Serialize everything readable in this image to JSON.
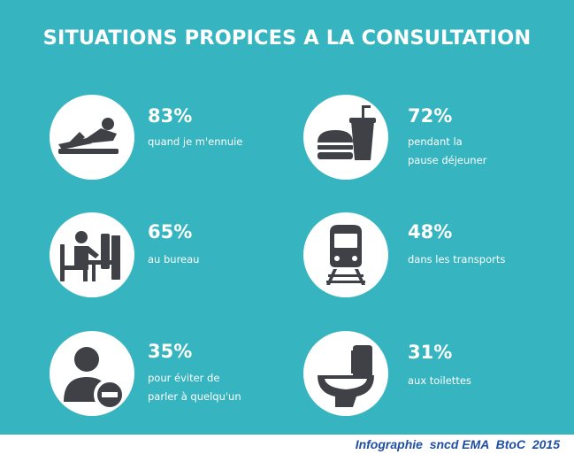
{
  "title": "SITUATIONS PROPICES A LA CONSULTATION",
  "colors": {
    "background": "#36b4bf",
    "icon": "#3f4147",
    "text": "#ffffff",
    "credit": "#1f4fa5"
  },
  "items": [
    {
      "icon": "lounging-person-icon",
      "percent": "83%",
      "label": "quand je m'ennuie"
    },
    {
      "icon": "fast-food-icon",
      "percent": "72%",
      "label": "pendant la\npause déjeuner"
    },
    {
      "icon": "person-at-computer-icon",
      "percent": "65%",
      "label": "au bureau"
    },
    {
      "icon": "train-icon",
      "percent": "48%",
      "label": "dans les transports"
    },
    {
      "icon": "user-minus-icon",
      "percent": "35%",
      "label": "pour éviter de\nparler à quelqu'un"
    },
    {
      "icon": "toilet-icon",
      "percent": "31%",
      "label": "aux toilettes"
    }
  ],
  "credit": "Infographie  sncd EMA  BtoC  2015"
}
